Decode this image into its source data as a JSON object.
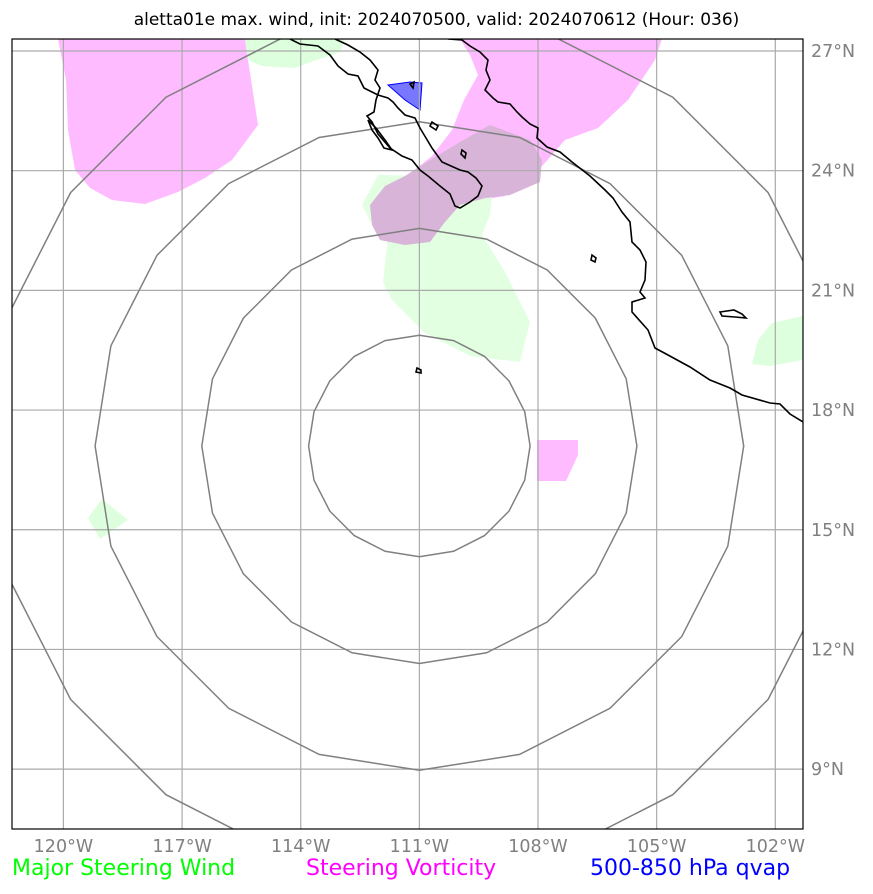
{
  "title": "aletta01e max. wind, init: 2024070500, valid: 2024070612 (Hour: 036)",
  "colors": {
    "steering_wind": "#00ff00",
    "steering_vorticity": "#ff00ff",
    "qvap": "#0000ff",
    "wind_fill": "#ddffdd",
    "vorticity_fill": "#ffbbff",
    "qvap_fill": "#7777ff",
    "grid": "#aaaaaa",
    "range_rings": "#808080",
    "coastline": "#000000"
  },
  "map": {
    "projection": "lon-lat",
    "lon_range": [
      -121.3,
      -101.3
    ],
    "lat_range": [
      7.5,
      27.3
    ],
    "grid": true,
    "lon_ticks": [
      {
        "value": -120,
        "label": "120°W"
      },
      {
        "value": -117,
        "label": "117°W"
      },
      {
        "value": -114,
        "label": "114°W"
      },
      {
        "value": -111,
        "label": "111°W"
      },
      {
        "value": -108,
        "label": "108°W"
      },
      {
        "value": -105,
        "label": "105°W"
      },
      {
        "value": -102,
        "label": "102°W"
      }
    ],
    "lat_ticks": [
      {
        "value": 27,
        "label": "27°N"
      },
      {
        "value": 24,
        "label": "24°N"
      },
      {
        "value": 21,
        "label": "21°N"
      },
      {
        "value": 18,
        "label": "18°N"
      },
      {
        "value": 15,
        "label": "15°N"
      },
      {
        "value": 12,
        "label": "12°N"
      },
      {
        "value": 9,
        "label": "9°N"
      }
    ],
    "storm_center": {
      "lon": -111,
      "lat": 17.1
    },
    "range_rings_deg": [
      2.8,
      5.5,
      8.2,
      10.9
    ]
  },
  "legend": {
    "wind": "Major Steering Wind",
    "vorticity": "Steering Vorticity",
    "qvap": "500-850 hPa qvap"
  }
}
